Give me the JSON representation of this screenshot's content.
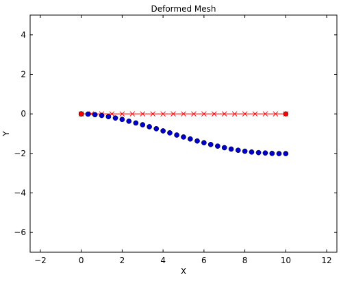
{
  "chart_data": {
    "type": "scatter",
    "title": "Deformed Mesh",
    "xlabel": "X",
    "ylabel": "Y",
    "xlim": [
      -2.5,
      12.5
    ],
    "ylim": [
      -7,
      5
    ],
    "xticks": [
      -2,
      0,
      2,
      4,
      6,
      8,
      10,
      12
    ],
    "yticks": [
      -6,
      -4,
      -2,
      0,
      2,
      4
    ],
    "grid": false,
    "series": [
      {
        "marker": "x",
        "line": true,
        "color": "#ff0000",
        "x": [
          0,
          0.5,
          1,
          1.5,
          2,
          2.5,
          3,
          3.5,
          4,
          4.5,
          5,
          5.5,
          6,
          6.5,
          7,
          7.5,
          8,
          8.5,
          9,
          9.5,
          10
        ],
        "y": [
          0,
          0,
          0,
          0,
          0,
          0,
          0,
          0,
          0,
          0,
          0,
          0,
          0,
          0,
          0,
          0,
          0,
          0,
          0,
          0,
          0
        ]
      },
      {
        "marker": "o",
        "line": false,
        "color": "#0000cc",
        "x": [
          0,
          0.33,
          0.67,
          1,
          1.33,
          1.67,
          2,
          2.33,
          2.67,
          3,
          3.33,
          3.67,
          4,
          4.33,
          4.67,
          5,
          5.33,
          5.67,
          6,
          6.33,
          6.67,
          7,
          7.33,
          7.67,
          8,
          8.33,
          8.67,
          9,
          9.33,
          9.67,
          10
        ],
        "y": [
          0,
          -0.01,
          -0.04,
          -0.08,
          -0.14,
          -0.21,
          -0.28,
          -0.37,
          -0.46,
          -0.55,
          -0.65,
          -0.75,
          -0.86,
          -0.96,
          -1.07,
          -1.17,
          -1.27,
          -1.37,
          -1.46,
          -1.55,
          -1.63,
          -1.71,
          -1.78,
          -1.84,
          -1.89,
          -1.93,
          -1.96,
          -1.98,
          -2.0,
          -2.01,
          -2.01
        ]
      }
    ],
    "end_points": {
      "color": "#ff0000",
      "x": [
        0,
        10
      ],
      "y": [
        0,
        0
      ]
    }
  }
}
